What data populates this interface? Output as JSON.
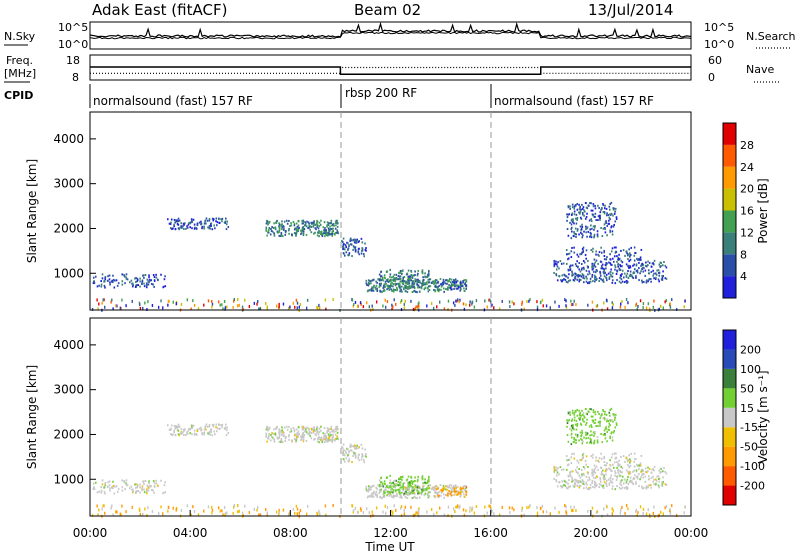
{
  "header": {
    "radar": "Adak East (fitACF)",
    "beam": "Beam 02",
    "date": "13/Jul/2014"
  },
  "side_labels": {
    "nsky": "N.Sky",
    "freq": "Freq.",
    "freq_unit": "[MHz]",
    "cpid": "CPID",
    "nsearch": "N.Search",
    "nave": "Nave"
  },
  "noise_axis": {
    "top": "10^5",
    "bottom": "10^0",
    "right_top": "10^5",
    "right_bottom": "10^0"
  },
  "freq_axis": {
    "left": [
      "18",
      "8"
    ],
    "right": [
      "60",
      "0"
    ]
  },
  "cpid": [
    "normalsound (fast) 157 RF",
    "rbsp 200 RF",
    "normalsound (fast) 157 RF"
  ],
  "colors": {
    "power": [
      "#1f1fdc",
      "#2b4fa8",
      "#3a7f7a",
      "#42a050",
      "#c8c000",
      "#ff9a00",
      "#ff5a00",
      "#e00000"
    ],
    "velocity": [
      "#1f1fdc",
      "#2a4ab8",
      "#3a7f3a",
      "#72d032",
      "#c8c8c8",
      "#f0c000",
      "#ff9a00",
      "#ff5a00",
      "#e00000"
    ]
  },
  "chart_data": [
    {
      "type": "line",
      "name": "noise",
      "x_range_hours": [
        0,
        24
      ],
      "title": "N.Sky / N.Search"
    },
    {
      "type": "line",
      "name": "frequency",
      "series": [
        {
          "name": "Freq.",
          "x": [
            0,
            10,
            10,
            18,
            18,
            24
          ],
          "y": [
            13.2,
            13.2,
            10.3,
            10.3,
            13.2,
            13.2
          ]
        },
        {
          "name": "Nave",
          "x": [
            0,
            10,
            10,
            18,
            18,
            24
          ],
          "y": [
            16,
            16,
            30,
            30,
            16,
            16
          ]
        }
      ]
    },
    {
      "type": "heatmap",
      "name": "power",
      "xlabel": "",
      "ylabel": "Slant Range [km]",
      "yticks": [
        1000,
        2000,
        3000,
        4000
      ],
      "ylim": [
        180,
        4600
      ],
      "colorbar_label": "Power [dB]",
      "colorbar_ticks": [
        "4",
        "8",
        "12",
        "16",
        "20",
        "24",
        "28"
      ]
    },
    {
      "type": "heatmap",
      "name": "velocity",
      "xlabel": "Time UT",
      "ylabel": "Slant Range [km]",
      "yticks": [
        1000,
        2000,
        3000,
        4000
      ],
      "ylim": [
        180,
        4600
      ],
      "xticks": [
        "00:00",
        "04:00",
        "08:00",
        "12:00",
        "16:00",
        "20:00",
        "00:00"
      ],
      "colorbar_label": "Velocity [m s⁻¹]",
      "colorbar_ticks": [
        "200",
        "100",
        "50",
        "15",
        "-15",
        "-50",
        "-100",
        "-200"
      ]
    }
  ],
  "echo_regions": [
    {
      "t0": 7.0,
      "t1": 9.9,
      "r0": 1850,
      "r1": 2200,
      "p": 2.0,
      "v": 4
    },
    {
      "t0": 3.0,
      "t1": 5.5,
      "r0": 2000,
      "r1": 2250,
      "p": 1.4,
      "v": 4
    },
    {
      "t0": 10.0,
      "t1": 11.0,
      "r0": 1400,
      "r1": 1800,
      "p": 1.5,
      "v": 4
    },
    {
      "t0": 11.0,
      "t1": 15.0,
      "r0": 600,
      "r1": 900,
      "p": 1.8,
      "v": 4
    },
    {
      "t0": 11.5,
      "t1": 13.5,
      "r0": 700,
      "r1": 1100,
      "p": 1.6,
      "v": 3
    },
    {
      "t0": 13.8,
      "t1": 15.0,
      "r0": 650,
      "r1": 850,
      "p": 1.2,
      "v": 6
    },
    {
      "t0": 0.1,
      "t1": 3.0,
      "r0": 700,
      "r1": 1000,
      "p": 1.0,
      "v": 4
    },
    {
      "t0": 19.0,
      "t1": 21.0,
      "r0": 1800,
      "r1": 2600,
      "p": 1.0,
      "v": 3
    },
    {
      "t0": 18.5,
      "t1": 23.0,
      "r0": 800,
      "r1": 1300,
      "p": 1.2,
      "v": 4
    },
    {
      "t0": 19.0,
      "t1": 22.0,
      "r0": 1300,
      "r1": 1600,
      "p": 0.8,
      "v": 4
    }
  ]
}
